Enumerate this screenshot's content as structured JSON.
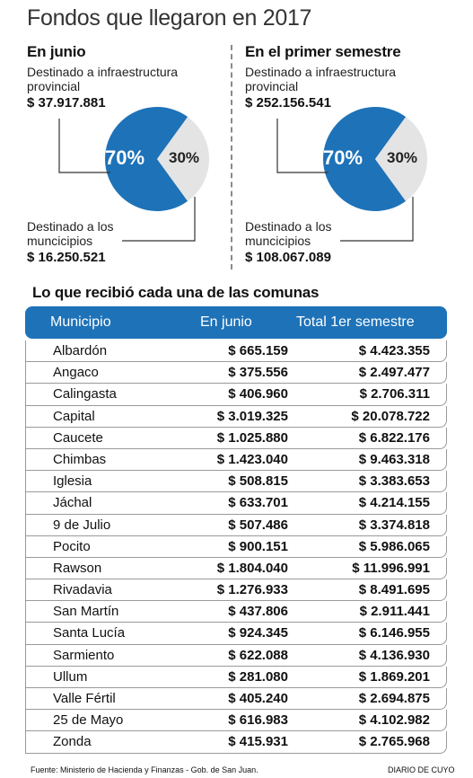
{
  "title": "Fondos que llegaron en 2017",
  "colors": {
    "blue": "#1e72b8",
    "light": "#e4e4e4",
    "connector": "#333333"
  },
  "chart_data": [
    {
      "type": "pie",
      "title": "En junio",
      "labels": [
        "Destinado a infraestructura provincial",
        "Destinado a los muncicipios"
      ],
      "values": [
        70,
        30
      ],
      "amounts": [
        "$ 37.917.881",
        "$ 16.250.521"
      ],
      "slice_labels": [
        "70%",
        "30%"
      ]
    },
    {
      "type": "pie",
      "title": "En el primer semestre",
      "labels": [
        "Destinado a infraestructura provincial",
        "Destinado a los muncicipios"
      ],
      "values": [
        70,
        30
      ],
      "amounts": [
        "$ 252.156.541",
        "$ 108.067.089"
      ],
      "slice_labels": [
        "70%",
        "30%"
      ]
    },
    {
      "type": "table",
      "title": "Lo que recibió cada una de las comunas",
      "columns": [
        "Municipio",
        "En junio",
        "Total 1er semestre"
      ],
      "rows": [
        [
          "Albardón",
          "$ 665.159",
          "$ 4.423.355"
        ],
        [
          "Angaco",
          "$ 375.556",
          "$ 2.497.477"
        ],
        [
          "Calingasta",
          "$ 406.960",
          "$ 2.706.311"
        ],
        [
          "Capital",
          "$ 3.019.325",
          "$ 20.078.722"
        ],
        [
          "Caucete",
          "$ 1.025.880",
          "$ 6.822.176"
        ],
        [
          "Chimbas",
          "$ 1.423.040",
          "$ 9.463.318"
        ],
        [
          "Iglesia",
          "$ 508.815",
          "$ 3.383.653"
        ],
        [
          "Jáchal",
          "$ 633.701",
          "$ 4.214.155"
        ],
        [
          "9 de Julio",
          "$ 507.486",
          "$ 3.374.818"
        ],
        [
          "Pocito",
          "$ 900.151",
          "$ 5.986.065"
        ],
        [
          "Rawson",
          "$ 1.804.040",
          "$ 11.996.991"
        ],
        [
          "Rivadavia",
          "$ 1.276.933",
          "$ 8.491.695"
        ],
        [
          "San Martín",
          "$ 437.806",
          "$ 2.911.441"
        ],
        [
          "Santa Lucía",
          "$ 924.345",
          "$ 6.146.955"
        ],
        [
          "Sarmiento",
          "$ 622.088",
          "$ 4.136.930"
        ],
        [
          "Ullum",
          "$ 281.080",
          "$ 1.869.201"
        ],
        [
          "Valle Fértil",
          "$ 405.240",
          "$ 2.694.875"
        ],
        [
          "25 de Mayo",
          "$ 616.983",
          "$ 4.102.982"
        ],
        [
          "Zonda",
          "$ 415.931",
          "$ 2.765.968"
        ]
      ]
    }
  ],
  "footer": {
    "source": "Fuente: Ministerio de Hacienda y Finanzas - Gob. de San Juan.",
    "brand": "DIARIO DE CUYO"
  }
}
